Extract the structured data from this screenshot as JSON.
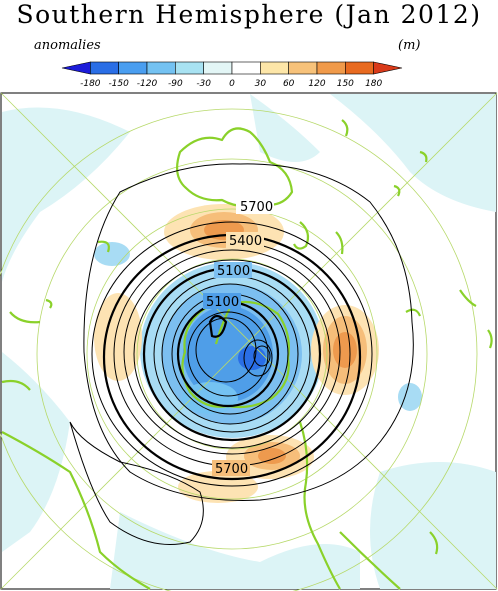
{
  "title": "Southern Hemisphere (Jan 2012)",
  "left_label": "anomalies",
  "right_label": "(m)",
  "colorbar": {
    "ticks": [
      "-180",
      "-150",
      "-120",
      "-90",
      "-30",
      "0",
      "30",
      "60",
      "120",
      "150",
      "180"
    ],
    "colors": [
      "#1c1cd9",
      "#2a6ee6",
      "#4a9ef0",
      "#74c2f2",
      "#a8e2f2",
      "#e3f6f6",
      "#ffffff",
      "#fde6a8",
      "#f7c27a",
      "#f09a4a",
      "#e86a20",
      "#d93a1a"
    ]
  },
  "contours": {
    "labels": [
      "5700",
      "5400",
      "5100",
      "5100",
      "5700"
    ]
  },
  "map_colors": {
    "coast": "#8ad12a",
    "grid": "#b7d96a",
    "light_blue": "#d9f3f6",
    "blue1": "#a8dcf4",
    "blue2": "#7cbff0",
    "blue3": "#4f9ee8",
    "orange1": "#fde3b3",
    "orange2": "#f6be7a",
    "orange3": "#ee9a4e"
  }
}
